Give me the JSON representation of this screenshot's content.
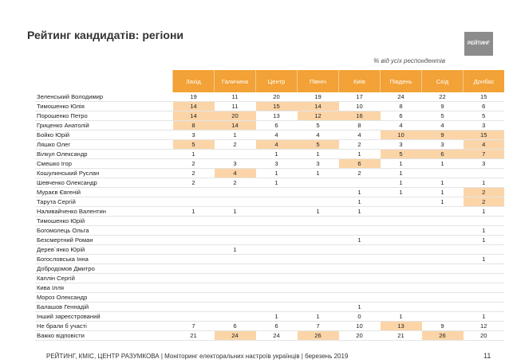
{
  "header": {
    "title": "Рейтинг кандидатів: регіони",
    "logo": "РЕЙТИНГ",
    "note": "% від усіх респондентів"
  },
  "table": {
    "columns": [
      "Захід",
      "Галичина",
      "Центр",
      "Північ",
      "Київ",
      "Південь",
      "Схід",
      "Донбас"
    ],
    "rows": [
      {
        "name": "Зеленський Володимир",
        "values": [
          19,
          11,
          20,
          19,
          17,
          24,
          22,
          15
        ],
        "highlight": []
      },
      {
        "name": "Тимошенко Юлія",
        "values": [
          14,
          11,
          15,
          14,
          10,
          8,
          9,
          6
        ],
        "highlight": [
          0,
          2,
          3
        ]
      },
      {
        "name": "Порошенко Петро",
        "values": [
          14,
          20,
          13,
          12,
          16,
          6,
          5,
          5
        ],
        "highlight": [
          0,
          1,
          3,
          4
        ]
      },
      {
        "name": "Гриценко Анатолій",
        "values": [
          8,
          14,
          6,
          5,
          8,
          4,
          4,
          3
        ],
        "highlight": [
          0,
          1
        ]
      },
      {
        "name": "Бойко Юрій",
        "values": [
          3,
          1,
          4,
          4,
          4,
          10,
          9,
          15
        ],
        "highlight": [
          5,
          6,
          7
        ]
      },
      {
        "name": "Ляшко Олег",
        "values": [
          5,
          2,
          4,
          5,
          2,
          3,
          3,
          4
        ],
        "highlight": [
          0,
          2,
          3,
          7
        ]
      },
      {
        "name": "Вілкул Олександр",
        "values": [
          1,
          null,
          1,
          1,
          1,
          5,
          6,
          7
        ],
        "highlight": [
          5,
          6,
          7
        ]
      },
      {
        "name": "Смешко Ігор",
        "values": [
          2,
          3,
          3,
          3,
          6,
          1,
          1,
          3
        ],
        "highlight": [
          4
        ]
      },
      {
        "name": "Кошулинський Руслан",
        "values": [
          2,
          4,
          1,
          1,
          2,
          1,
          null,
          null
        ],
        "highlight": [
          1
        ]
      },
      {
        "name": "Шевченко Олександр",
        "values": [
          2,
          2,
          1,
          null,
          null,
          1,
          1,
          1
        ],
        "highlight": []
      },
      {
        "name": "Мураєв Євгеній",
        "values": [
          null,
          null,
          null,
          null,
          1,
          1,
          1,
          2
        ],
        "highlight": [
          7
        ]
      },
      {
        "name": "Тарута Сергій",
        "values": [
          null,
          null,
          null,
          null,
          1,
          null,
          1,
          2
        ],
        "highlight": [
          7
        ]
      },
      {
        "name": "Наливайченко Валентин",
        "values": [
          1,
          1,
          null,
          1,
          1,
          null,
          null,
          1
        ],
        "highlight": []
      },
      {
        "name": "Тимошенко Юрій",
        "values": [
          null,
          null,
          null,
          null,
          null,
          null,
          null,
          null
        ],
        "highlight": []
      },
      {
        "name": "Богомолець Ольга",
        "values": [
          null,
          null,
          null,
          null,
          null,
          null,
          null,
          1
        ],
        "highlight": []
      },
      {
        "name": "Безсмертний Роман",
        "values": [
          null,
          null,
          null,
          null,
          1,
          null,
          null,
          1
        ],
        "highlight": []
      },
      {
        "name": "Дерев`янко Юрій",
        "values": [
          null,
          1,
          null,
          null,
          null,
          null,
          null,
          null
        ],
        "highlight": []
      },
      {
        "name": "Богословська Інна",
        "values": [
          null,
          null,
          null,
          null,
          null,
          null,
          null,
          1
        ],
        "highlight": []
      },
      {
        "name": "Добродомов Дмитро",
        "values": [
          null,
          null,
          null,
          null,
          null,
          null,
          null,
          null
        ],
        "highlight": []
      },
      {
        "name": "Каплін Сергій",
        "values": [
          null,
          null,
          null,
          null,
          null,
          null,
          null,
          null
        ],
        "highlight": []
      },
      {
        "name": "Кива Ілля",
        "values": [
          null,
          null,
          null,
          null,
          null,
          null,
          null,
          null
        ],
        "highlight": []
      },
      {
        "name": "Мороз Олександр",
        "values": [
          null,
          null,
          null,
          null,
          null,
          null,
          null,
          null
        ],
        "highlight": []
      },
      {
        "name": "Балашов Геннадій",
        "values": [
          null,
          null,
          null,
          null,
          1,
          null,
          null,
          null
        ],
        "highlight": []
      },
      {
        "name": "Інший зареєстрований",
        "values": [
          null,
          null,
          1,
          1,
          0,
          1,
          null,
          1
        ],
        "highlight": []
      },
      {
        "name": "Не брали б участі",
        "values": [
          7,
          6,
          6,
          7,
          10,
          13,
          9,
          12
        ],
        "highlight": [
          5
        ]
      },
      {
        "name": "Важко відповісти",
        "values": [
          21,
          24,
          24,
          26,
          20,
          21,
          26,
          20
        ],
        "highlight": [
          1,
          3,
          6
        ]
      }
    ]
  },
  "footer": {
    "text": "РЕЙТИНГ, КМІС, ЦЕНТР РАЗУМКОВА  | Моніторинг електоральних настроїв українців | березень 2019",
    "page": 11
  }
}
